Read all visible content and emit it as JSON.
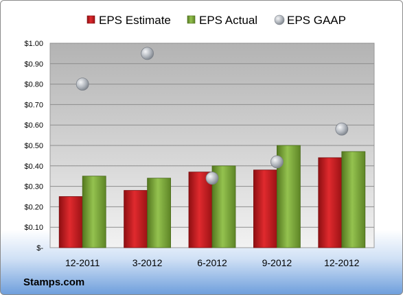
{
  "chart_data": {
    "type": "bar",
    "categories": [
      "12-2011",
      "3-2012",
      "6-2012",
      "9-2012",
      "12-2012"
    ],
    "series": [
      {
        "name": "EPS Estimate",
        "kind": "bar",
        "color": "#c0181c",
        "values": [
          0.25,
          0.28,
          0.37,
          0.38,
          0.44
        ]
      },
      {
        "name": "EPS Actual",
        "kind": "bar",
        "color": "#77a33a",
        "values": [
          0.35,
          0.34,
          0.4,
          0.5,
          0.47
        ]
      },
      {
        "name": "EPS GAAP",
        "kind": "scatter",
        "color": "#a8adb4",
        "values": [
          0.8,
          0.95,
          0.34,
          0.42,
          0.58
        ]
      }
    ],
    "ylim": [
      0,
      1.0
    ],
    "yticks": [
      0,
      0.1,
      0.2,
      0.3,
      0.4,
      0.5,
      0.6,
      0.7,
      0.8,
      0.9,
      1.0
    ],
    "ytick_labels": [
      "$-",
      "$0.10",
      "$0.20",
      "$0.30",
      "$0.40",
      "$0.50",
      "$0.60",
      "$0.70",
      "$0.80",
      "$0.90",
      "$1.00"
    ],
    "grid": true,
    "legend": "top"
  },
  "footer": {
    "brand": "Stamps.com"
  }
}
